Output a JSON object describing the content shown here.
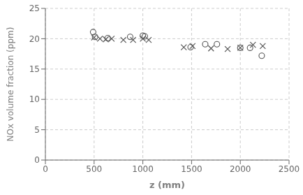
{
  "chart_data": {
    "type": "scatter",
    "xlabel": "z (mm)",
    "ylabel": "NOx volume fraction (ppm)",
    "xlim": [
      0,
      2500
    ],
    "ylim": [
      0,
      25
    ],
    "xticks": [
      0,
      500,
      1000,
      1500,
      2000,
      2500
    ],
    "yticks": [
      0,
      5,
      10,
      15,
      20,
      25
    ],
    "grid": true,
    "series": [
      {
        "marker": "circle",
        "color": "#555555",
        "x": [
          490,
          510,
          640,
          870,
          1000,
          1020,
          1490,
          1640,
          1760,
          2000,
          2100,
          2220
        ],
        "values": [
          21.1,
          20.3,
          20.1,
          20.3,
          20.5,
          20.4,
          18.6,
          19.1,
          19.1,
          18.5,
          18.5,
          17.2
        ]
      },
      {
        "marker": "cross",
        "color": "#555555",
        "x": [
          500,
          560,
          620,
          680,
          800,
          900,
          1000,
          1060,
          1420,
          1510,
          1700,
          1870,
          2000,
          2130,
          2230
        ],
        "values": [
          20.2,
          20.0,
          19.9,
          20.0,
          19.8,
          19.8,
          20.0,
          19.8,
          18.6,
          18.8,
          18.4,
          18.3,
          18.5,
          19.0,
          18.8
        ]
      }
    ]
  }
}
